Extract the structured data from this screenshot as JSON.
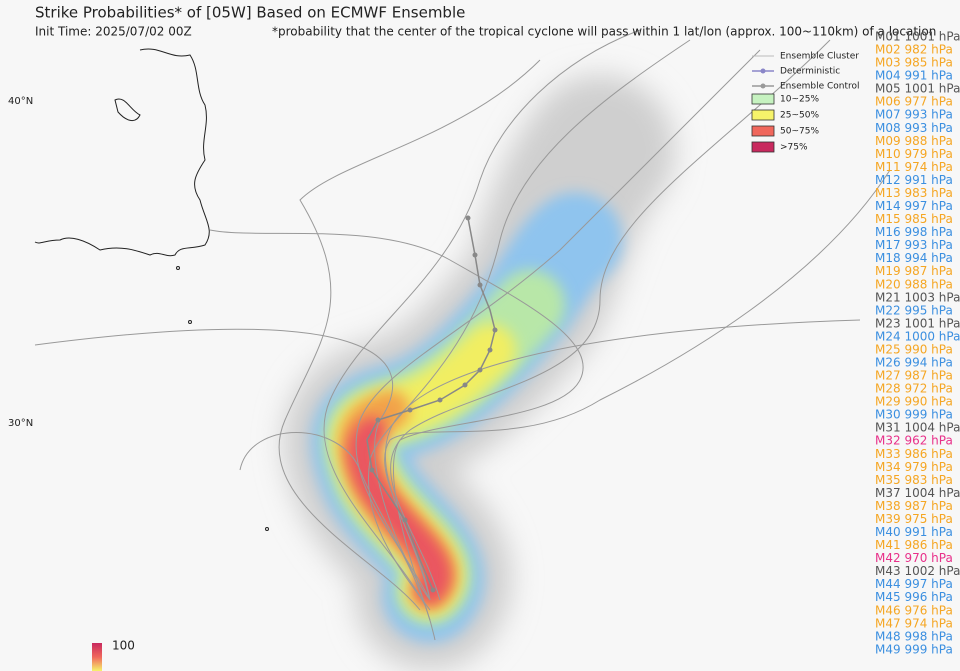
{
  "header": {
    "title": "Strike Probabilities* of [05W] Based on ECMWF Ensemble",
    "init_time": "Init Time: 2025/07/02 00Z",
    "note": "*probability that the center of the tropical cyclone will pass within 1 lat/lon (approx. 100~110km) of a location"
  },
  "map": {
    "lat_labels": [
      "40°N",
      "30°N"
    ],
    "legend": {
      "lines": [
        "Ensemble Cluster",
        "Deterministic",
        "Ensemble Control"
      ],
      "bins": [
        {
          "label": "10~25%",
          "color": "#c6f2c0"
        },
        {
          "label": "25~50%",
          "color": "#f6f36a"
        },
        {
          "label": "50~75%",
          "color": "#f0675c"
        },
        {
          "label": ">75%",
          "color": "#c8295e"
        }
      ]
    },
    "colorbar_max": "100"
  },
  "members": [
    {
      "label": "M01 1001 hPa",
      "color": "#555555"
    },
    {
      "label": "M02 982 hPa",
      "color": "#f5a623"
    },
    {
      "label": "M03 985 hPa",
      "color": "#f5a623"
    },
    {
      "label": "M04 991 hPa",
      "color": "#3b8fe0"
    },
    {
      "label": "M05 1001 hPa",
      "color": "#555555"
    },
    {
      "label": "M06 977 hPa",
      "color": "#f5a623"
    },
    {
      "label": "M07 993 hPa",
      "color": "#3b8fe0"
    },
    {
      "label": "M08 993 hPa",
      "color": "#3b8fe0"
    },
    {
      "label": "M09 988 hPa",
      "color": "#f5a623"
    },
    {
      "label": "M10 979 hPa",
      "color": "#f5a623"
    },
    {
      "label": "M11 974 hPa",
      "color": "#f5a623"
    },
    {
      "label": "M12 991 hPa",
      "color": "#3b8fe0"
    },
    {
      "label": "M13 983 hPa",
      "color": "#f5a623"
    },
    {
      "label": "M14 997 hPa",
      "color": "#3b8fe0"
    },
    {
      "label": "M15 985 hPa",
      "color": "#f5a623"
    },
    {
      "label": "M16 998 hPa",
      "color": "#3b8fe0"
    },
    {
      "label": "M17 993 hPa",
      "color": "#3b8fe0"
    },
    {
      "label": "M18 994 hPa",
      "color": "#3b8fe0"
    },
    {
      "label": "M19 987 hPa",
      "color": "#f5a623"
    },
    {
      "label": "M20 988 hPa",
      "color": "#f5a623"
    },
    {
      "label": "M21 1003 hPa",
      "color": "#555555"
    },
    {
      "label": "M22 995 hPa",
      "color": "#3b8fe0"
    },
    {
      "label": "M23 1001 hPa",
      "color": "#555555"
    },
    {
      "label": "M24 1000 hPa",
      "color": "#3b8fe0"
    },
    {
      "label": "M25 990 hPa",
      "color": "#f5a623"
    },
    {
      "label": "M26 994 hPa",
      "color": "#3b8fe0"
    },
    {
      "label": "M27 987 hPa",
      "color": "#f5a623"
    },
    {
      "label": "M28 972 hPa",
      "color": "#f5a623"
    },
    {
      "label": "M29 990 hPa",
      "color": "#f5a623"
    },
    {
      "label": "M30 999 hPa",
      "color": "#3b8fe0"
    },
    {
      "label": "M31 1004 hPa",
      "color": "#555555"
    },
    {
      "label": "M32 962 hPa",
      "color": "#e8308a"
    },
    {
      "label": "M33 986 hPa",
      "color": "#f5a623"
    },
    {
      "label": "M34 979 hPa",
      "color": "#f5a623"
    },
    {
      "label": "M35 983 hPa",
      "color": "#f5a623"
    },
    {
      "label": "M37 1004 hPa",
      "color": "#555555"
    },
    {
      "label": "M38 987 hPa",
      "color": "#f5a623"
    },
    {
      "label": "M39 975 hPa",
      "color": "#f5a623"
    },
    {
      "label": "M40 991 hPa",
      "color": "#3b8fe0"
    },
    {
      "label": "M41 986 hPa",
      "color": "#f5a623"
    },
    {
      "label": "M42 970 hPa",
      "color": "#e8308a"
    },
    {
      "label": "M43 1002 hPa",
      "color": "#555555"
    },
    {
      "label": "M44 997 hPa",
      "color": "#3b8fe0"
    },
    {
      "label": "M45 996 hPa",
      "color": "#3b8fe0"
    },
    {
      "label": "M46 976 hPa",
      "color": "#f5a623"
    },
    {
      "label": "M47 974 hPa",
      "color": "#f5a623"
    },
    {
      "label": "M48 998 hPa",
      "color": "#3b8fe0"
    },
    {
      "label": "M49 999 hPa",
      "color": "#3b8fe0"
    }
  ]
}
